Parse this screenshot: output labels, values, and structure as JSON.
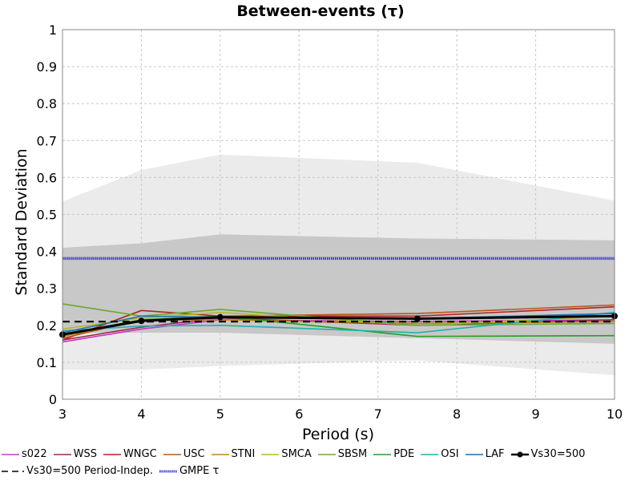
{
  "chart_data": {
    "type": "line",
    "title": "Between-events (τ)",
    "xlabel": "Period (s)",
    "ylabel": "Standard Deviation",
    "xlim": [
      3,
      10
    ],
    "ylim": [
      0,
      1
    ],
    "xticks": [
      "3",
      "4",
      "5",
      "6",
      "7",
      "8",
      "9",
      "10"
    ],
    "yticks": [
      "0",
      "0.1",
      "0.2",
      "0.3",
      "0.4",
      "0.5",
      "0.6",
      "0.7",
      "0.8",
      "0.9",
      "1"
    ],
    "grid": true,
    "legend_position": "bottom",
    "bands": [
      {
        "color": "#ebebeb",
        "x": [
          3,
          4,
          5,
          7.5,
          10
        ],
        "lower": [
          0.08,
          0.08,
          0.09,
          0.105,
          0.065
        ],
        "upper": [
          0.535,
          0.62,
          0.662,
          0.64,
          0.537
        ]
      },
      {
        "color": "#c8c8c8",
        "x": [
          3,
          4,
          5,
          7.5,
          10
        ],
        "lower": [
          0.18,
          0.18,
          0.18,
          0.165,
          0.15
        ],
        "upper": [
          0.41,
          0.422,
          0.446,
          0.435,
          0.43
        ]
      }
    ],
    "series": [
      {
        "name": "s022",
        "color": "#cc33cc",
        "style": "solid",
        "x": [
          3,
          4,
          5,
          7.5,
          10
        ],
        "y": [
          0.155,
          0.19,
          0.215,
          0.21,
          0.215
        ]
      },
      {
        "name": "WSS",
        "color": "#9b2a4a",
        "style": "solid",
        "x": [
          3,
          4,
          5,
          7.5,
          10
        ],
        "y": [
          0.16,
          0.195,
          0.22,
          0.2,
          0.215
        ]
      },
      {
        "name": "WNGC",
        "color": "#b22222",
        "style": "solid",
        "x": [
          3,
          4,
          5,
          7.5,
          10
        ],
        "y": [
          0.16,
          0.24,
          0.225,
          0.225,
          0.25
        ]
      },
      {
        "name": "USC",
        "color": "#b8581a",
        "style": "solid",
        "x": [
          3,
          4,
          5,
          7.5,
          10
        ],
        "y": [
          0.165,
          0.215,
          0.225,
          0.232,
          0.255
        ]
      },
      {
        "name": "STNI",
        "color": "#b8860b",
        "style": "solid",
        "x": [
          3,
          4,
          5,
          7.5,
          10
        ],
        "y": [
          0.17,
          0.215,
          0.215,
          0.205,
          0.21
        ]
      },
      {
        "name": "SMCA",
        "color": "#b5b82a",
        "style": "solid",
        "x": [
          3,
          4,
          5,
          7.5,
          10
        ],
        "y": [
          0.19,
          0.22,
          0.235,
          0.2,
          0.225
        ]
      },
      {
        "name": "SBSM",
        "color": "#6aa832",
        "style": "solid",
        "x": [
          3,
          4,
          5,
          7.5,
          10
        ],
        "y": [
          0.258,
          0.225,
          0.243,
          0.2,
          0.205
        ]
      },
      {
        "name": "PDE",
        "color": "#22a022",
        "style": "solid",
        "x": [
          3,
          4,
          5,
          7.5,
          10
        ],
        "y": [
          0.175,
          0.215,
          0.225,
          0.17,
          0.172
        ]
      },
      {
        "name": "OSI",
        "color": "#20b2aa",
        "style": "solid",
        "x": [
          3,
          4,
          5,
          7.5,
          10
        ],
        "y": [
          0.185,
          0.198,
          0.2,
          0.18,
          0.235
        ]
      },
      {
        "name": "LAF",
        "color": "#1f6fa8",
        "style": "solid",
        "x": [
          3,
          4,
          5,
          7.5,
          10
        ],
        "y": [
          0.18,
          0.225,
          0.222,
          0.218,
          0.232
        ]
      },
      {
        "name": "Vs30=500",
        "color": "#000000",
        "style": "solid-markers",
        "x": [
          3,
          4,
          5,
          7.5,
          10
        ],
        "y": [
          0.175,
          0.212,
          0.222,
          0.218,
          0.225
        ]
      },
      {
        "name": "Vs30=500 Period-Indep.",
        "color": "#000000",
        "style": "dashed",
        "x": [
          3,
          10
        ],
        "y": [
          0.21,
          0.21
        ]
      },
      {
        "name": "GMPE τ",
        "color": "#3333cc",
        "style": "dotted",
        "x": [
          3,
          10
        ],
        "y": [
          0.381,
          0.381
        ]
      }
    ]
  }
}
